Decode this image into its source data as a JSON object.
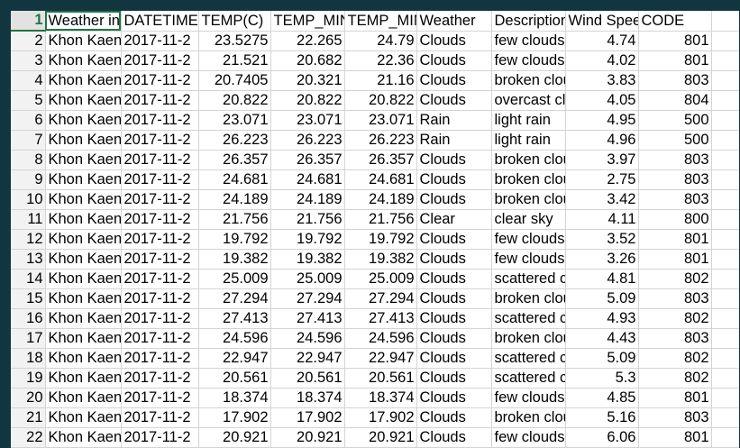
{
  "sheet": {
    "selected_row": 1,
    "header_row": {
      "row_number": "1",
      "cells": [
        "Weather in",
        "DATETIME",
        "TEMP(C)",
        "TEMP_MIN",
        "TEMP_MIN",
        "Weather",
        "Description",
        "Wind Speed",
        "CODE",
        ""
      ]
    },
    "rows": [
      {
        "n": "2",
        "c": [
          "Khon Kaen",
          "2017-11-2",
          "23.5275",
          "22.265",
          "24.79",
          "Clouds",
          "few clouds",
          "4.74",
          "801",
          ""
        ]
      },
      {
        "n": "3",
        "c": [
          "Khon Kaen",
          "2017-11-2",
          "21.521",
          "20.682",
          "22.36",
          "Clouds",
          "few clouds",
          "4.02",
          "801",
          ""
        ]
      },
      {
        "n": "4",
        "c": [
          "Khon Kaen",
          "2017-11-2",
          "20.7405",
          "20.321",
          "21.16",
          "Clouds",
          "broken clouds",
          "3.83",
          "803",
          ""
        ]
      },
      {
        "n": "5",
        "c": [
          "Khon Kaen",
          "2017-11-2",
          "20.822",
          "20.822",
          "20.822",
          "Clouds",
          "overcast clouds",
          "4.05",
          "804",
          ""
        ]
      },
      {
        "n": "6",
        "c": [
          "Khon Kaen",
          "2017-11-2",
          "23.071",
          "23.071",
          "23.071",
          "Rain",
          "light rain",
          "4.95",
          "500",
          ""
        ]
      },
      {
        "n": "7",
        "c": [
          "Khon Kaen",
          "2017-11-2",
          "26.223",
          "26.223",
          "26.223",
          "Rain",
          "light rain",
          "4.96",
          "500",
          ""
        ]
      },
      {
        "n": "8",
        "c": [
          "Khon Kaen",
          "2017-11-2",
          "26.357",
          "26.357",
          "26.357",
          "Clouds",
          "broken clouds",
          "3.97",
          "803",
          ""
        ]
      },
      {
        "n": "9",
        "c": [
          "Khon Kaen",
          "2017-11-2",
          "24.681",
          "24.681",
          "24.681",
          "Clouds",
          "broken clouds",
          "2.75",
          "803",
          ""
        ]
      },
      {
        "n": "10",
        "c": [
          "Khon Kaen",
          "2017-11-2",
          "24.189",
          "24.189",
          "24.189",
          "Clouds",
          "broken clouds",
          "3.42",
          "803",
          ""
        ]
      },
      {
        "n": "11",
        "c": [
          "Khon Kaen",
          "2017-11-2",
          "21.756",
          "21.756",
          "21.756",
          "Clear",
          "clear sky",
          "4.11",
          "800",
          ""
        ]
      },
      {
        "n": "12",
        "c": [
          "Khon Kaen",
          "2017-11-2",
          "19.792",
          "19.792",
          "19.792",
          "Clouds",
          "few clouds",
          "3.52",
          "801",
          ""
        ]
      },
      {
        "n": "13",
        "c": [
          "Khon Kaen",
          "2017-11-2",
          "19.382",
          "19.382",
          "19.382",
          "Clouds",
          "few clouds",
          "3.26",
          "801",
          ""
        ]
      },
      {
        "n": "14",
        "c": [
          "Khon Kaen",
          "2017-11-2",
          "25.009",
          "25.009",
          "25.009",
          "Clouds",
          "scattered clouds",
          "4.81",
          "802",
          ""
        ]
      },
      {
        "n": "15",
        "c": [
          "Khon Kaen",
          "2017-11-2",
          "27.294",
          "27.294",
          "27.294",
          "Clouds",
          "broken clouds",
          "5.09",
          "803",
          ""
        ]
      },
      {
        "n": "16",
        "c": [
          "Khon Kaen",
          "2017-11-2",
          "27.413",
          "27.413",
          "27.413",
          "Clouds",
          "scattered clouds",
          "4.93",
          "802",
          ""
        ]
      },
      {
        "n": "17",
        "c": [
          "Khon Kaen",
          "2017-11-2",
          "24.596",
          "24.596",
          "24.596",
          "Clouds",
          "broken clouds",
          "4.43",
          "803",
          ""
        ]
      },
      {
        "n": "18",
        "c": [
          "Khon Kaen",
          "2017-11-2",
          "22.947",
          "22.947",
          "22.947",
          "Clouds",
          "scattered clouds",
          "5.09",
          "802",
          ""
        ]
      },
      {
        "n": "19",
        "c": [
          "Khon Kaen",
          "2017-11-2",
          "20.561",
          "20.561",
          "20.561",
          "Clouds",
          "scattered clouds",
          "5.3",
          "802",
          ""
        ]
      },
      {
        "n": "20",
        "c": [
          "Khon Kaen",
          "2017-11-2",
          "18.374",
          "18.374",
          "18.374",
          "Clouds",
          "few clouds",
          "4.85",
          "801",
          ""
        ]
      },
      {
        "n": "21",
        "c": [
          "Khon Kaen",
          "2017-11-2",
          "17.902",
          "17.902",
          "17.902",
          "Clouds",
          "broken clouds",
          "5.16",
          "803",
          ""
        ]
      },
      {
        "n": "22",
        "c": [
          "Khon Kaen",
          "2017-11-2",
          "20.921",
          "20.921",
          "20.921",
          "Clouds",
          "few clouds",
          "6.06",
          "801",
          ""
        ]
      }
    ],
    "column_align": [
      "txt",
      "txt",
      "num",
      "num",
      "num",
      "txt",
      "txt",
      "num",
      "num",
      "txt"
    ],
    "colors": {
      "accent": "#217346",
      "frame": "#123640",
      "gridline": "#d4d4d4"
    }
  }
}
